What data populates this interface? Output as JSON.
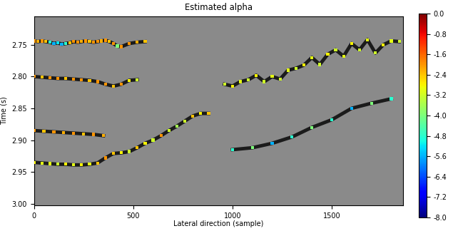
{
  "chart_data": {
    "type": "image",
    "title": "Estimated alpha",
    "x_label": "Lateral direction (sample)",
    "y_label": "Time (s)",
    "xlim": [
      0,
      1860
    ],
    "ylim": [
      3.003,
      2.705
    ],
    "xticks": [
      0,
      500,
      1000,
      1500
    ],
    "yticks": [
      2.75,
      {
        "value": 2.8,
        "label": "2.80"
      },
      2.85,
      {
        "value": 2.9,
        "label": "2.90"
      },
      2.95,
      {
        "value": 3.0,
        "label": "3.00"
      }
    ],
    "colorbar": {
      "range": [
        -8.0,
        0.0
      ],
      "ticks": [
        0.0,
        -0.8,
        -1.6,
        -2.4,
        -3.2,
        -4.0,
        -4.8,
        -5.6,
        -6.4,
        -7.2,
        -8.0
      ]
    },
    "horizons": [
      {
        "x": [
          0,
          20,
          40,
          60,
          80,
          100,
          120,
          140,
          160,
          180,
          200,
          220,
          240,
          260,
          280,
          300,
          320,
          340,
          360,
          380,
          400,
          420,
          440,
          480,
          520,
          560
        ],
        "y": [
          2.744,
          2.745,
          2.744,
          2.745,
          2.746,
          2.748,
          2.747,
          2.749,
          2.748,
          2.747,
          2.745,
          2.746,
          2.745,
          2.744,
          2.745,
          2.746,
          2.745,
          2.744,
          2.743,
          2.745,
          2.748,
          2.752,
          2.753,
          2.748,
          2.746,
          2.745
        ],
        "alpha": [
          -2.0,
          -2.2,
          -2.0,
          -2.4,
          -4.8,
          -5.6,
          -5.2,
          -5.6,
          -4.8,
          -2.4,
          -2.0,
          -2.0,
          -2.2,
          -2.0,
          -2.4,
          -2.0,
          -2.0,
          -2.2,
          -2.0,
          -2.4,
          -2.0,
          -4.0,
          -2.0,
          -2.0,
          -2.2,
          -2.4
        ]
      },
      {
        "x": [
          0,
          40,
          80,
          120,
          160,
          200,
          240,
          280,
          320,
          360,
          400,
          440,
          480,
          520
        ],
        "y": [
          2.8,
          2.801,
          2.802,
          2.803,
          2.803,
          2.804,
          2.805,
          2.806,
          2.808,
          2.812,
          2.815,
          2.812,
          2.806,
          2.805
        ],
        "alpha": [
          -2.0,
          -2.4,
          -2.0,
          -2.0,
          -2.4,
          -2.0,
          -2.0,
          -2.4,
          -2.0,
          -2.0,
          -2.4,
          -2.0,
          -2.8,
          -3.2
        ]
      },
      {
        "x": [
          0,
          50,
          100,
          150,
          200,
          250,
          300,
          350
        ],
        "y": [
          2.885,
          2.886,
          2.887,
          2.888,
          2.889,
          2.89,
          2.891,
          2.893
        ],
        "alpha": [
          -2.0,
          -2.4,
          -2.0,
          -2.2,
          -2.0,
          -2.4,
          -2.0,
          -2.2
        ]
      },
      {
        "x": [
          0,
          40,
          80,
          120,
          160,
          200,
          240,
          280,
          320,
          360,
          400,
          440,
          480,
          520,
          560,
          600,
          640,
          680,
          720,
          760,
          800,
          840,
          880
        ],
        "y": [
          2.935,
          2.936,
          2.937,
          2.938,
          2.938,
          2.939,
          2.939,
          2.938,
          2.936,
          2.928,
          2.921,
          2.92,
          2.918,
          2.912,
          2.905,
          2.9,
          2.893,
          2.885,
          2.878,
          2.87,
          2.862,
          2.858,
          2.858
        ],
        "alpha": [
          -2.8,
          -3.0,
          -3.0,
          -3.2,
          -2.8,
          -3.0,
          -2.8,
          -3.0,
          -2.4,
          -2.0,
          -2.4,
          -2.8,
          -3.2,
          -2.4,
          -2.8,
          -3.2,
          -2.0,
          -3.2,
          -3.6,
          -3.2,
          -2.4,
          -2.8,
          -2.4
        ]
      },
      {
        "x": [
          960,
          1000,
          1040,
          1080,
          1120,
          1160,
          1200,
          1240,
          1280,
          1320,
          1360,
          1400,
          1440,
          1480,
          1520,
          1560,
          1600,
          1640,
          1680,
          1720,
          1760,
          1800,
          1840
        ],
        "y": [
          2.812,
          2.815,
          2.808,
          2.805,
          2.798,
          2.808,
          2.8,
          2.804,
          2.79,
          2.787,
          2.782,
          2.77,
          2.781,
          2.765,
          2.758,
          2.768,
          2.748,
          2.758,
          2.742,
          2.763,
          2.75,
          2.744,
          2.745
        ],
        "alpha": [
          -3.2,
          -2.8,
          -3.0,
          -3.2,
          -2.8,
          -3.2,
          -3.0,
          -3.2,
          -3.0,
          -3.2,
          -2.8,
          -3.0,
          -3.2,
          -2.8,
          -3.2,
          -3.0,
          -2.8,
          -3.2,
          -3.0,
          -3.2,
          -2.8,
          -3.0,
          -3.2
        ]
      },
      {
        "x": [
          1000,
          1100,
          1200,
          1300,
          1400,
          1500,
          1600,
          1700,
          1800
        ],
        "y": [
          2.915,
          2.912,
          2.905,
          2.895,
          2.88,
          2.868,
          2.85,
          2.842,
          2.835
        ],
        "alpha": [
          -4.8,
          -4.0,
          -5.6,
          -4.8,
          -4.0,
          -4.8,
          -5.6,
          -4.0,
          -4.8
        ]
      }
    ]
  }
}
